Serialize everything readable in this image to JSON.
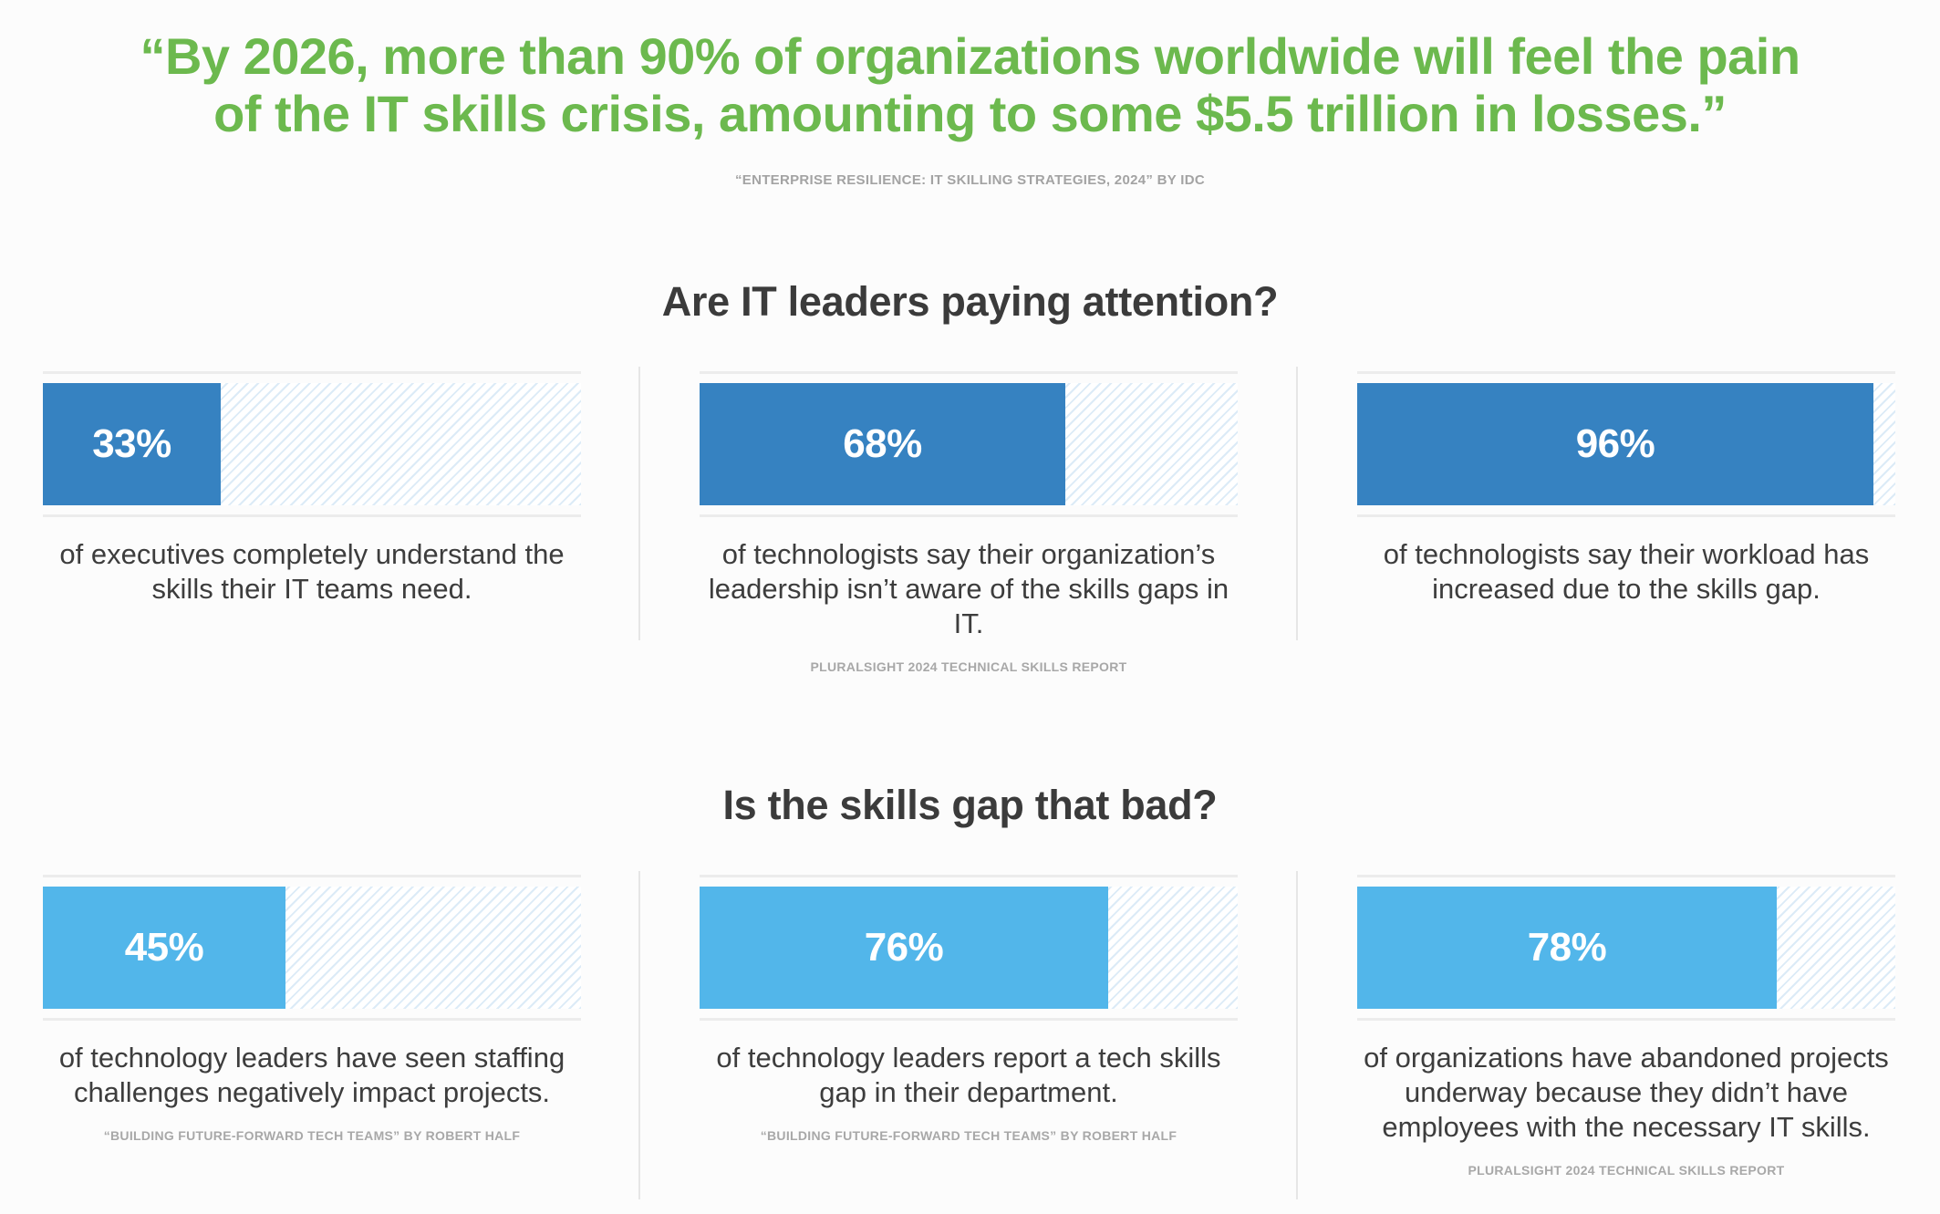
{
  "quote": {
    "line1": "“By 2026, more than 90% of organizations worldwide will feel the pain",
    "line2": "of the IT skills crisis, amounting to some $5.5 trillion in losses.”",
    "source": "“ENTERPRISE RESILIENCE: IT SKILLING STRATEGIES, 2024” BY IDC"
  },
  "colors": {
    "quote_green": "#6cb94e",
    "section1_bar": "#3682c1",
    "section2_bar": "#52b6ea",
    "track_stripe": "#dcebf7"
  },
  "chart_data": [
    {
      "type": "bar",
      "title": "Are IT leaders paying attention?",
      "orientation": "horizontal",
      "ylim": [
        0,
        100
      ],
      "items": [
        {
          "value": 33,
          "label": "33%",
          "desc": "of executives completely understand the skills their IT teams need.",
          "source": ""
        },
        {
          "value": 68,
          "label": "68%",
          "desc": "of technologists say their organization’s leadership isn’t aware of the skills gaps in IT.",
          "source": "PLURALSIGHT 2024 TECHNICAL SKILLS REPORT"
        },
        {
          "value": 96,
          "label": "96%",
          "desc": "of technologists say their workload has increased due to the skills gap.",
          "source": ""
        }
      ]
    },
    {
      "type": "bar",
      "title": "Is the skills gap that bad?",
      "orientation": "horizontal",
      "ylim": [
        0,
        100
      ],
      "items": [
        {
          "value": 45,
          "label": "45%",
          "desc": "of technology leaders have seen staffing challenges negatively impact projects.",
          "source": "“BUILDING FUTURE-FORWARD TECH TEAMS” BY ROBERT HALF"
        },
        {
          "value": 76,
          "label": "76%",
          "desc": "of technology leaders report a tech skills gap in their department.",
          "source": "“BUILDING FUTURE-FORWARD TECH TEAMS” BY ROBERT HALF"
        },
        {
          "value": 78,
          "label": "78%",
          "desc": "of organizations have abandoned projects underway because they didn’t have employees with the necessary IT skills.",
          "source": "PLURALSIGHT 2024 TECHNICAL SKILLS REPORT"
        }
      ]
    }
  ]
}
